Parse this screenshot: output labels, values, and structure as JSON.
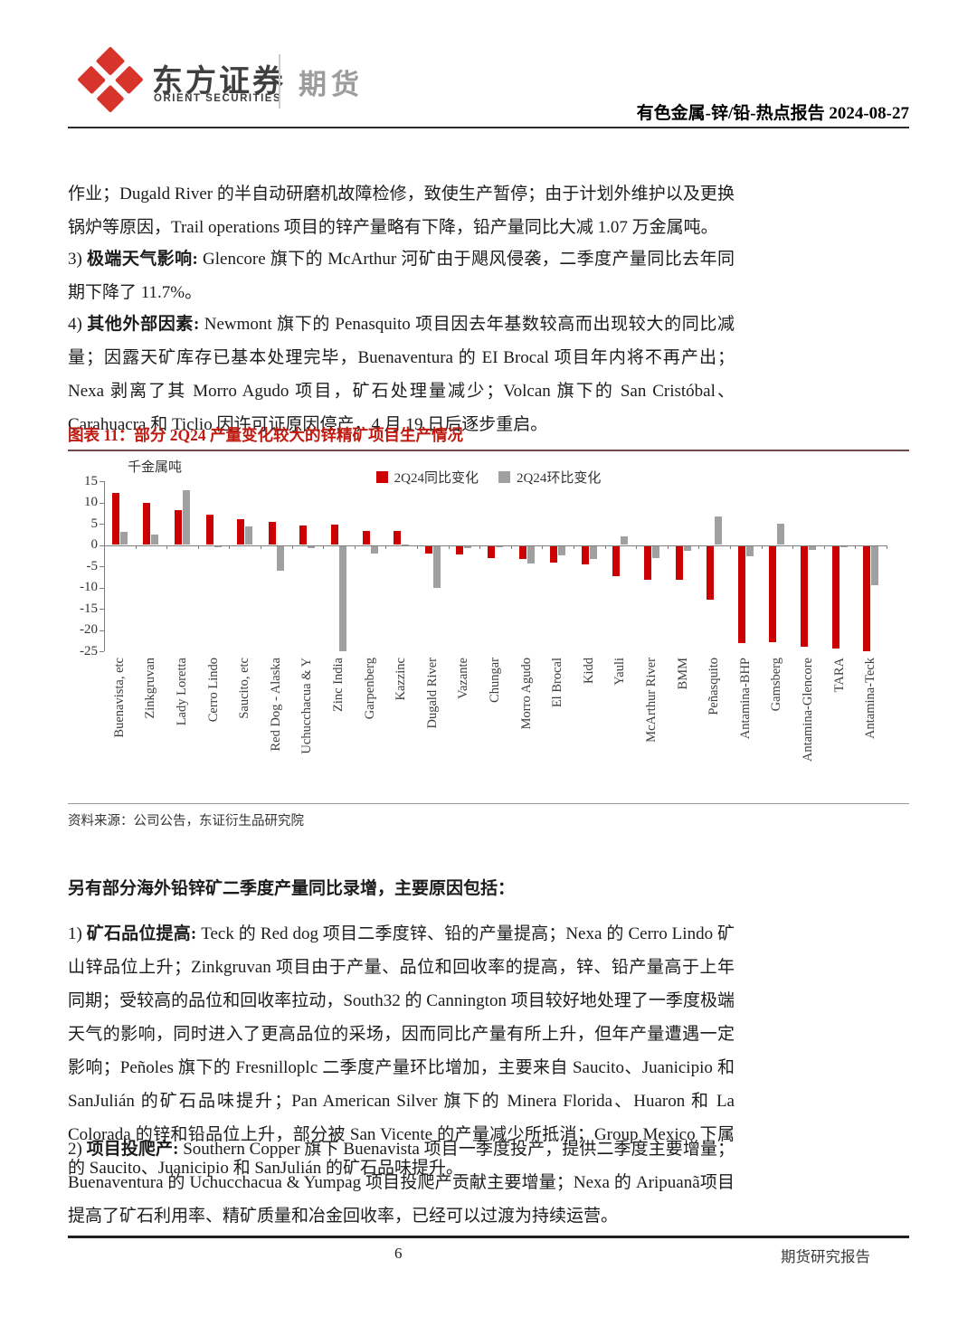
{
  "header": {
    "brand_cn": "东方证券",
    "brand_en": "ORIENT SECURITIES",
    "badge": "期货",
    "doc_title": "有色金属-锌/铅-热点报告 2024-08-27"
  },
  "body": {
    "p1": "作业；Dugald River 的半自动研磨机故障检修，致使生产暂停；由于计划外维护以及更换锅炉等原因，Trail operations 项目的锌产量略有下降，铅产量同比大减 1.07 万金属吨。",
    "p2_num": "3) ",
    "p2_bold": "极端天气影响: ",
    "p2_text": "Glencore 旗下的 McArthur 河矿由于飓风侵袭，二季度产量同比去年同期下降了 11.7%。",
    "p3_num": "4) ",
    "p3_bold": "其他外部因素: ",
    "p3_text": "Newmont 旗下的 Penasquito 项目因去年基数较高而出现较大的同比减量；因露天矿库存已基本处理完毕，Buenaventura 的 EI Brocal 项目年内将不再产出；Nexa 剥离了其 Morro Agudo 项目，矿石处理量减少；Volcan 旗下的 San Cristóbal、Carahuacra 和 Ticlio 因许可证原因停产，4 月 19 日后逐步重启。",
    "heading2": "另有部分海外铅锌矿二季度产量同比录增，主要原因包括：",
    "p4_num": "1) ",
    "p4_bold": "矿石品位提高: ",
    "p4_text": "Teck 的 Red dog 项目二季度锌、铅的产量提高；Nexa 的 Cerro Lindo 矿山锌品位上升；Zinkgruvan 项目由于产量、品位和回收率的提高，锌、铅产量高于上年同期；受较高的品位和回收率拉动，South32 的 Cannington 项目较好地处理了一季度极端天气的影响，同时进入了更高品位的采场，因而同比产量有所上升，但年产量遭遇一定影响；Peñoles 旗下的 Fresnilloplc 二季度产量环比增加，主要来自 Saucito、Juanicipio 和 SanJulián 的矿石品味提升；Pan American Silver 旗下的 Minera Florida、Huaron 和 La Colorada 的锌和铅品位上升，部分被 San Vicente 的产量减少所抵消；Group Mexico 下属的 Saucito、Juanicipio 和 SanJulián 的矿石品味提升。",
    "p5_num": "2) ",
    "p5_bold": "项目投爬产: ",
    "p5_text": "Southern Copper 旗下 Buenavista 项目一季度投产，提供二季度主要增量；Buenaventura 的 Uchucchacua & Yumpag 项目投爬产贡献主要增量；Nexa 的 Aripuanã项目提高了矿石利用率、精矿质量和冶金回收率，已经可以过渡为持续运营。"
  },
  "figure": {
    "title": "图表 11：部分 2Q24 产量变化较大的锌精矿项目生产情况",
    "source": "资料来源：公司公告，东证衍生品研究院"
  },
  "chart_data": {
    "type": "bar",
    "title": "图表11：部分2Q24产量变化较大的锌精矿项目生产情况",
    "ylabel": "千金属吨",
    "ylim": [
      -25,
      15
    ],
    "yticks": [
      15,
      10,
      5,
      0,
      -5,
      -10,
      -15,
      -20,
      -25
    ],
    "grid": false,
    "legend_position": "top-center",
    "categories": [
      "Buenavista, etc",
      "Zinkgruvan",
      "Lady Loretta",
      "Cerro Lindo",
      "Saucito, etc",
      "Red Dog - Alaska",
      "Uchucchacua & Y",
      "Zinc India",
      "Garpenberg",
      "Kazzinc",
      "Dugald River",
      "Vazante",
      "Chungar",
      "Morro Agudo",
      "El Brocal",
      "Kidd",
      "Yauli",
      "McArthur River",
      "BMM",
      "Peñasquito",
      "Antamina-BHP",
      "Gamsberg",
      "Antamina-Glencore",
      "TARA",
      "Antamina-Teck"
    ],
    "series": [
      {
        "name": "2Q24同比变化",
        "color": "#CC0000",
        "values": [
          12.2,
          9.8,
          8.1,
          7.2,
          6.0,
          5.5,
          4.6,
          4.7,
          3.2,
          3.4,
          -1.9,
          -2.1,
          -2.9,
          -3.1,
          -3.9,
          -4.4,
          -7.1,
          -7.9,
          -7.9,
          -12.6,
          -22.9,
          -22.6,
          -23.7,
          -24.1,
          -24.7
        ]
      },
      {
        "name": "2Q24环比变化",
        "color": "#A0A0A0",
        "values": [
          3.0,
          2.4,
          12.9,
          -0.4,
          4.3,
          -5.8,
          -0.6,
          -24.8,
          -1.9,
          0.2,
          -9.9,
          -0.6,
          -0.3,
          -4.1,
          -2.3,
          -3.1,
          2.1,
          -2.9,
          -1.2,
          6.8,
          -2.4,
          4.9,
          -1.0,
          -0.4,
          -9.2
        ]
      }
    ]
  },
  "footer": {
    "page": "6",
    "right": "期货研究报告"
  }
}
